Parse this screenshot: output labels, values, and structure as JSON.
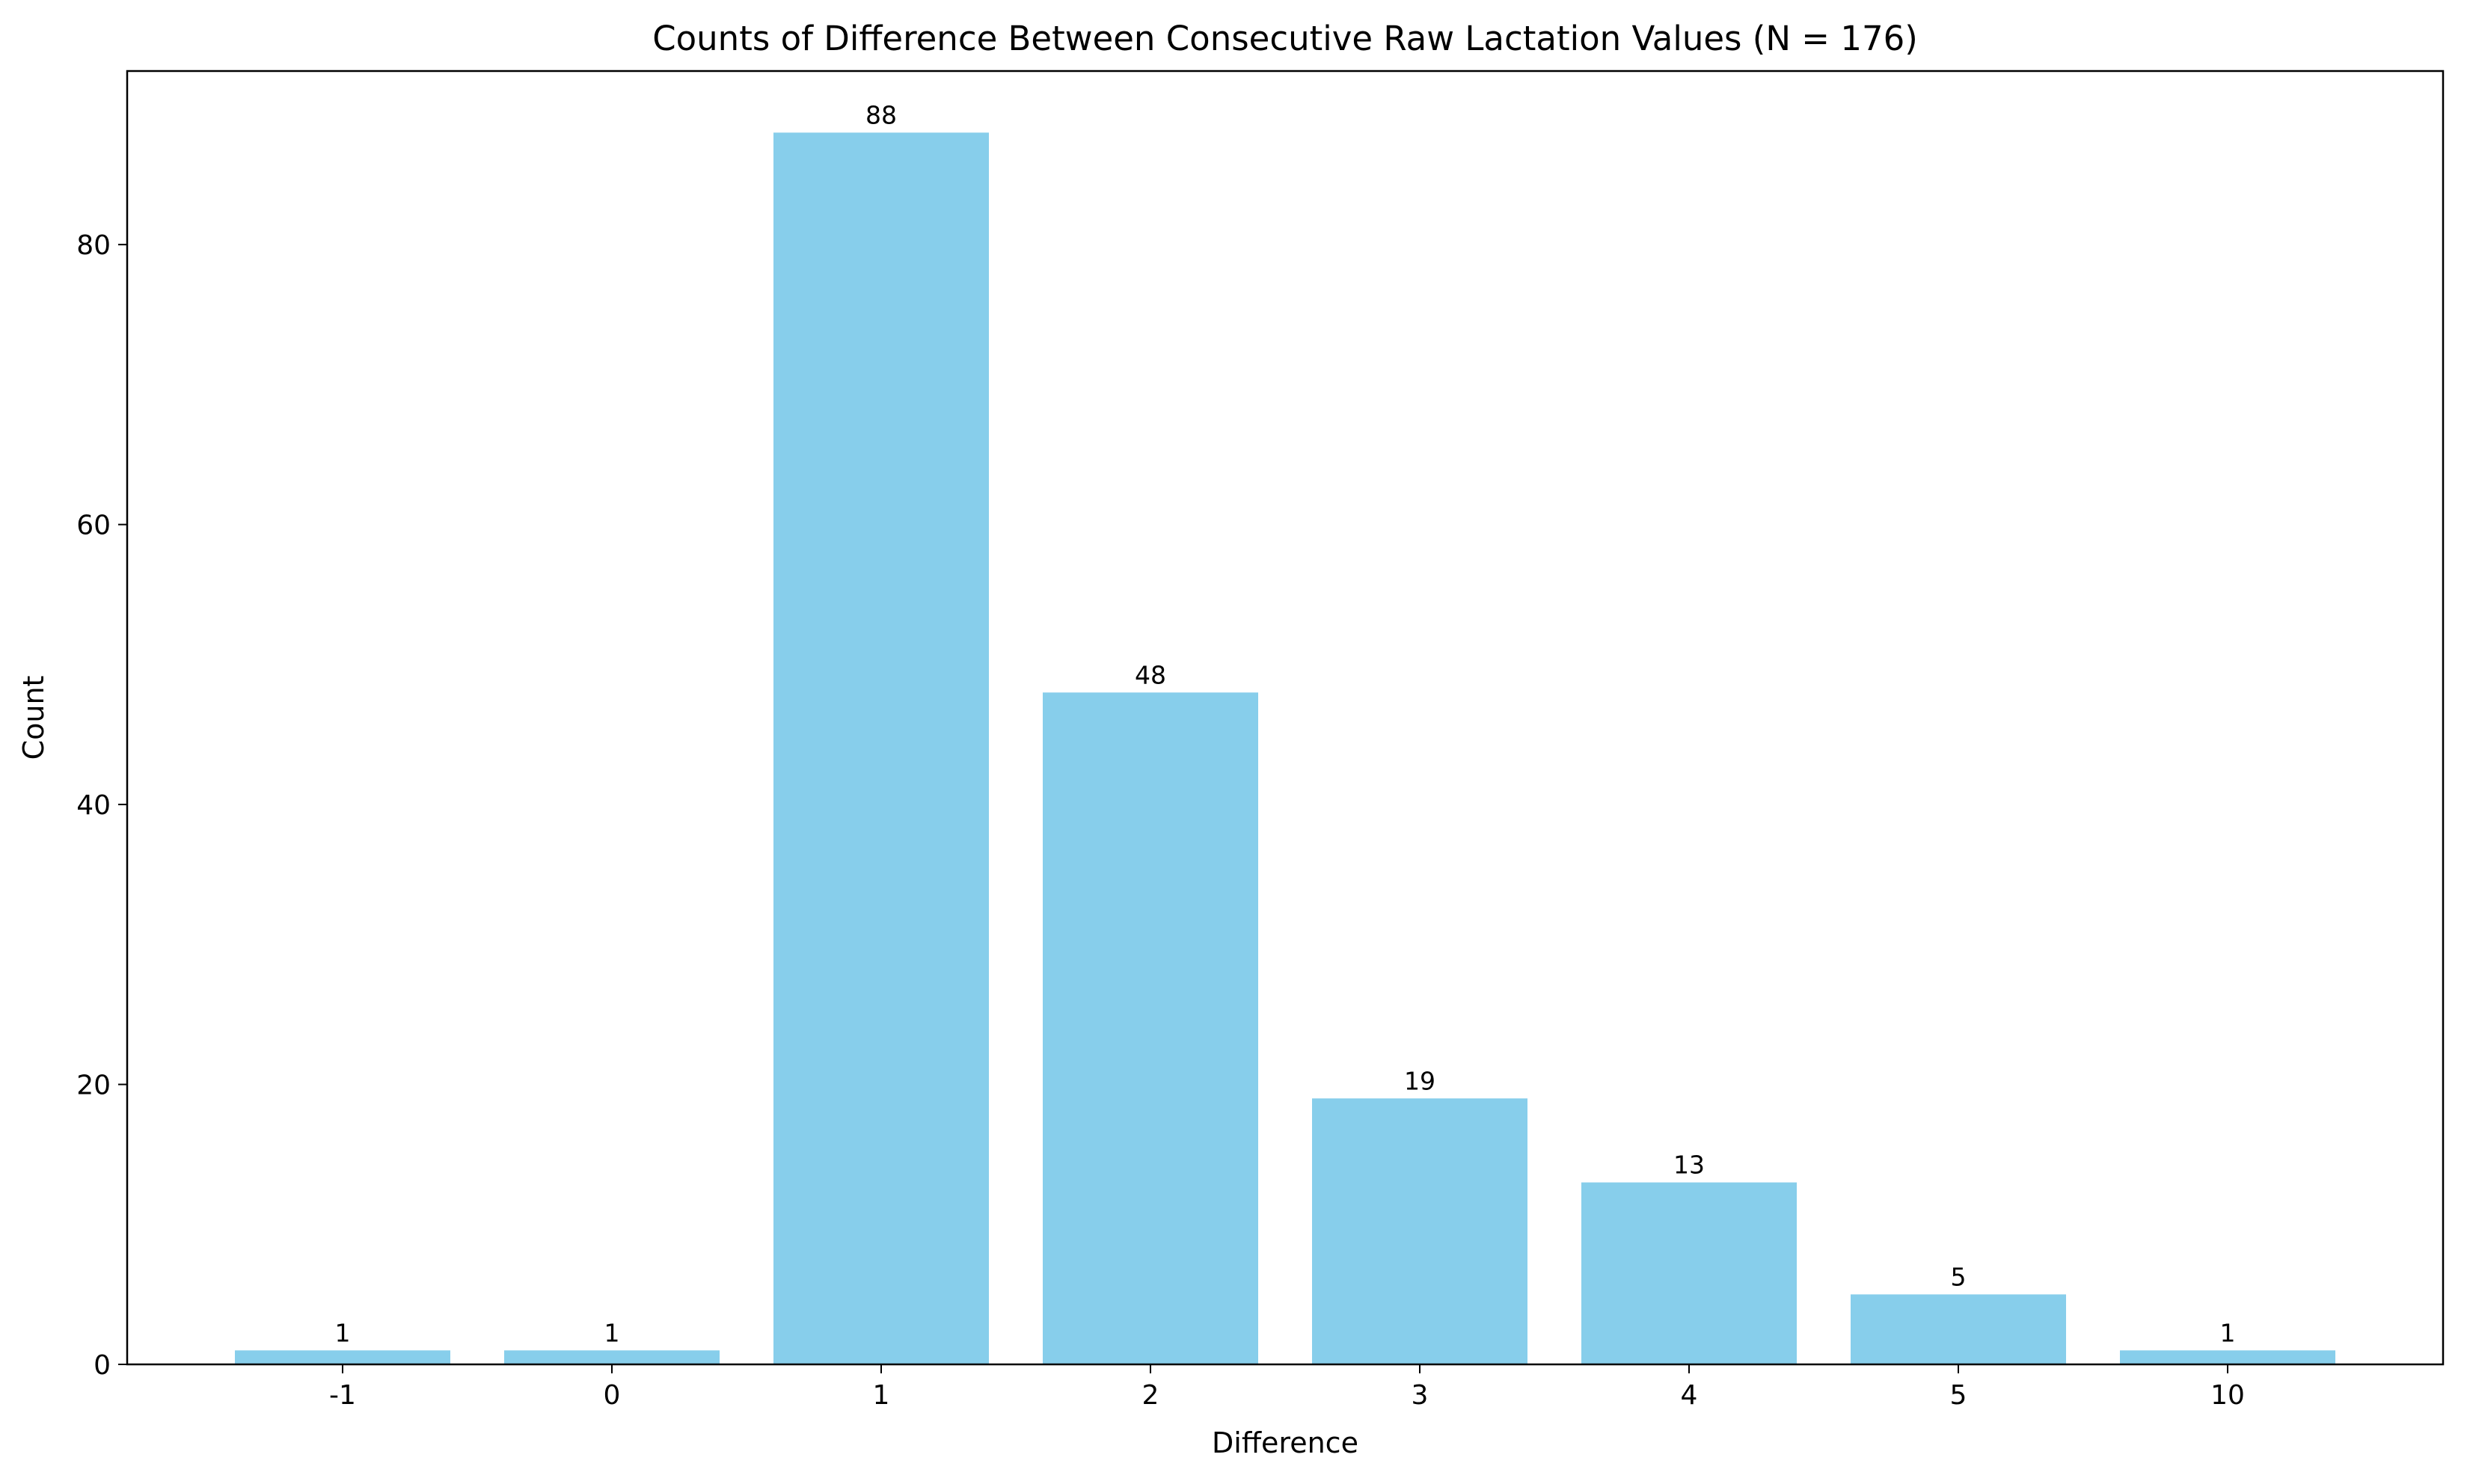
{
  "chart_data": {
    "type": "bar",
    "title": "Counts of Difference Between Consecutive Raw Lactation Values (N = 176)",
    "xlabel": "Difference",
    "ylabel": "Count",
    "categories": [
      "-1",
      "0",
      "1",
      "2",
      "3",
      "4",
      "5",
      "10"
    ],
    "values": [
      1,
      1,
      88,
      48,
      19,
      13,
      5,
      1
    ],
    "data_labels": [
      "1",
      "1",
      "88",
      "48",
      "19",
      "13",
      "5",
      "1"
    ],
    "ylim": [
      0,
      92.4
    ],
    "yticks": [
      0,
      20,
      40,
      60,
      80
    ],
    "ytick_labels": [
      "0",
      "20",
      "40",
      "60",
      "80"
    ],
    "bar_color": "#87ceeb",
    "grid": false,
    "legend": "none"
  }
}
